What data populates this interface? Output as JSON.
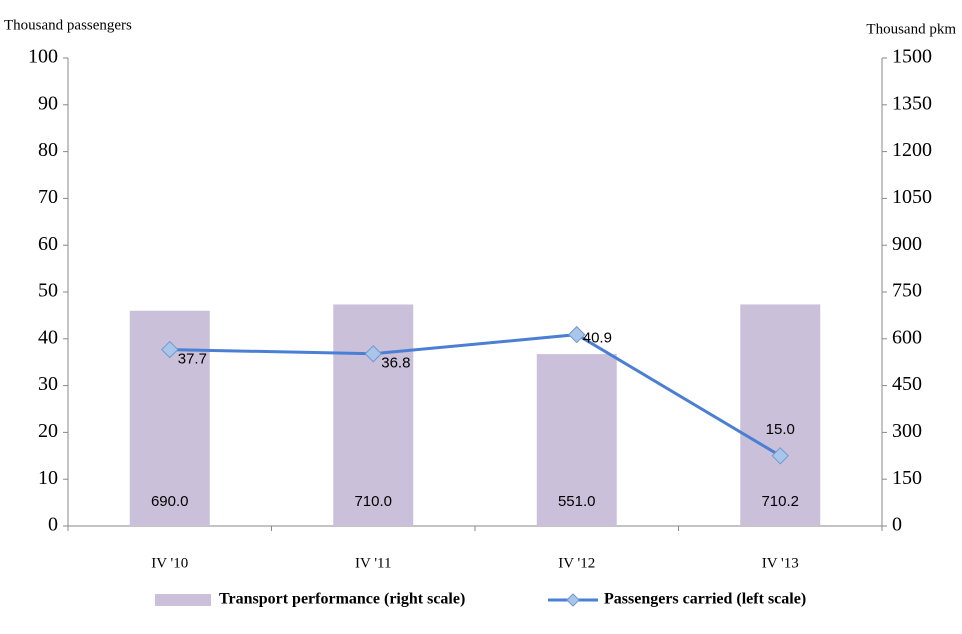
{
  "chart_data": {
    "type": "bar_line",
    "y_axis_label": "Thousand passengers",
    "y2_axis_label": "Thousand pkm",
    "categories": [
      "IV '10",
      "IV '11",
      "IV '12",
      "IV '13"
    ],
    "series": [
      {
        "name": "Transport performance (right scale)",
        "type": "bar",
        "axis": "y2",
        "color": "#cbc0da",
        "values": [
          690,
          710,
          551,
          710.2
        ],
        "value_labels": [
          "690.0",
          "710.0",
          "551.0",
          "710.2"
        ]
      },
      {
        "name": "Passengers carried (left scale)",
        "type": "line",
        "axis": "y",
        "color": "#4a7fd4",
        "marker_color": "#a9c5e9",
        "values": [
          37.7,
          36.8,
          40.9,
          15.0
        ],
        "value_labels": [
          "37.7",
          "36.8",
          "40.9",
          "15.0"
        ]
      }
    ],
    "ylim": [
      0,
      100
    ],
    "yticks": [
      0,
      10,
      20,
      30,
      40,
      50,
      60,
      70,
      80,
      90,
      100
    ],
    "y2lim": [
      0,
      1500
    ],
    "y2ticks": [
      0,
      150,
      300,
      450,
      600,
      750,
      900,
      1050,
      1200,
      1350,
      1500
    ],
    "legend": "bottom"
  }
}
